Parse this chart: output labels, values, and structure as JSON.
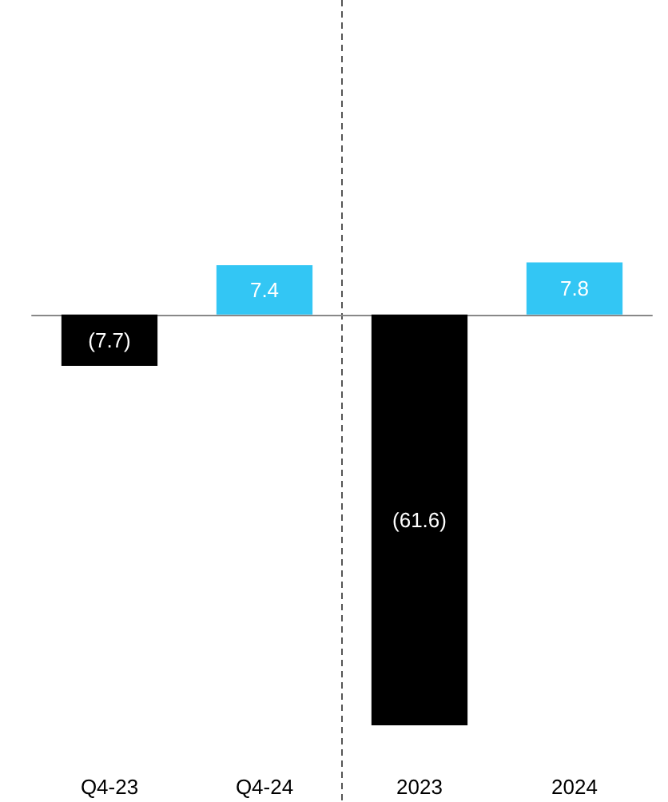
{
  "chart_data": {
    "type": "bar",
    "categories": [
      "Q4-23",
      "Q4-24",
      "2023",
      "2024"
    ],
    "values": [
      -7.7,
      7.4,
      -61.6,
      7.8
    ],
    "colors": [
      "#000000",
      "#33c6f4",
      "#000000",
      "#33c6f4"
    ],
    "value_labels": [
      "(7.7)",
      "7.4",
      "(61.6)",
      "7.8"
    ],
    "tick_labels": "x"
  }
}
